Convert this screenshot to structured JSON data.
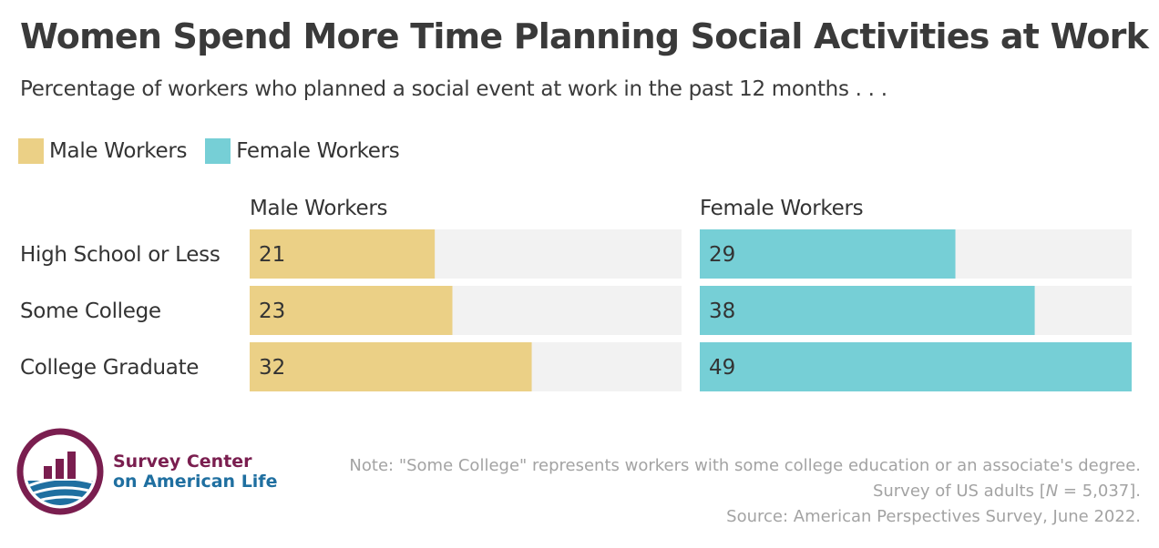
{
  "title": "Women Spend More Time Planning Social Activities at Work",
  "subtitle": "Percentage of workers who planned a social event at work in the past 12 months . . .",
  "legend": [
    {
      "label": "Male Workers",
      "color": "#ebd086"
    },
    {
      "label": "Female Workers",
      "color": "#76cfd6"
    }
  ],
  "chart_data": {
    "type": "bar",
    "orientation": "horizontal",
    "layout": "small-multiples",
    "categories": [
      "High School or Less",
      "Some College",
      "College Graduate"
    ],
    "series": [
      {
        "name": "Male Workers",
        "values": [
          21,
          23,
          32
        ],
        "color": "#ebd086"
      },
      {
        "name": "Female Workers",
        "values": [
          29,
          38,
          49
        ],
        "color": "#76cfd6"
      }
    ],
    "xlim": [
      0,
      49
    ],
    "background_track_color": "#f2f2f2",
    "legend_position": "top-left"
  },
  "note": {
    "line1": "Note: \"Some College\" represents workers with some college education or an associate's degree.",
    "line2_pre": "Survey of US adults [",
    "line2_n": "N",
    "line2_post": " = 5,037].",
    "line3": "Source: American Perspectives Survey, June 2022."
  },
  "logo": {
    "line1": "Survey Center",
    "line2": "on American Life",
    "color_primary": "#7a1e4f",
    "color_secondary": "#1f6fa0"
  }
}
